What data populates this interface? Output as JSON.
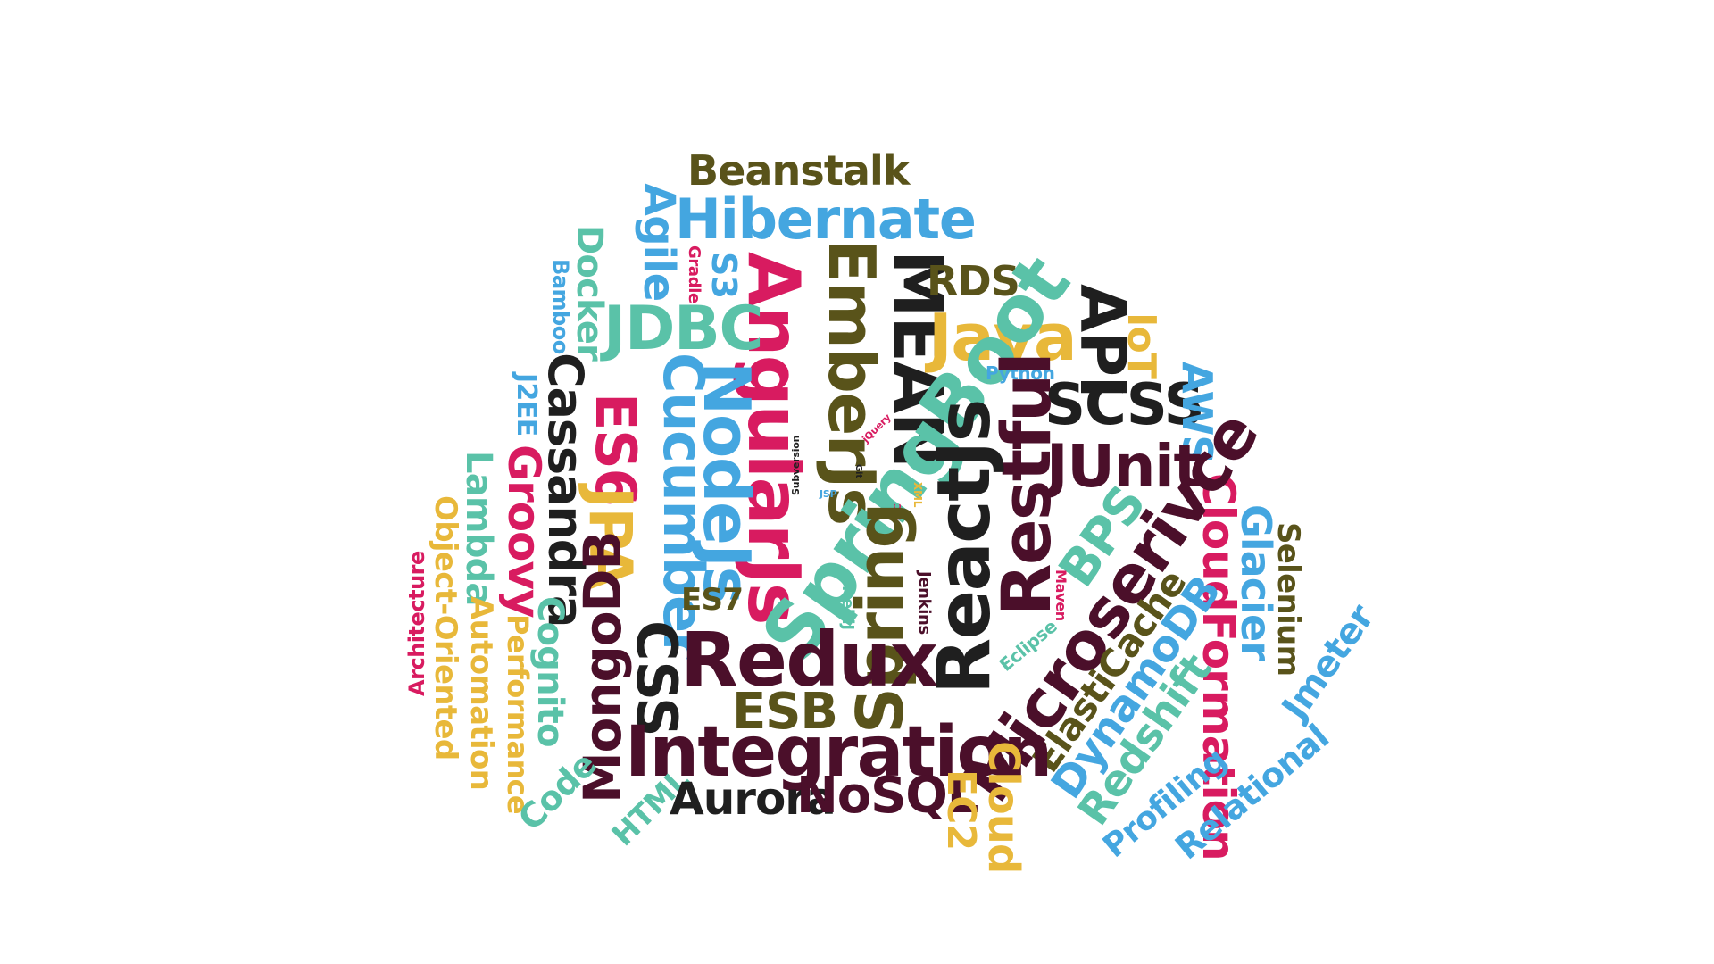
{
  "colors": {
    "dark_gold": "#59531a",
    "blue": "#44a6e0",
    "teal": "#5ac2a8",
    "pink": "#d81b60",
    "black": "#1f1f1f",
    "maroon": "#4b0f2a",
    "yellow": "#e8b83a"
  },
  "words": {
    "beanstalk": "Beanstalk",
    "hibernate": "Hibernate",
    "agile": "Agile",
    "docker": "Docker",
    "bamboo": "Bamboo",
    "gradle": "Gradle",
    "s3": "S3",
    "angularjs": "AngularJs",
    "emberjs": "EmberJs",
    "mean": "MEAN",
    "rds": "RDS",
    "java": "Java",
    "api": "API",
    "iot": "IoT",
    "jdbc": "JDBC",
    "cassandra": "Cassandra",
    "j2ee": "J2EE",
    "es6": "ES6",
    "cucumber": "Cucumber",
    "nodejs": "NodeJs",
    "springboot": "SpringBoot",
    "python": "Python",
    "scss": "SCSS",
    "aws": "AWS",
    "restful": "Restful",
    "junit": "JUnit",
    "lambda": "Lambda",
    "groovy": "Groovy",
    "jpa": "JPA",
    "object_oriented": "Object-Oriented",
    "architecture": "Architecture",
    "subversion": "Subversion",
    "jsp": "JSP",
    "git": "Git",
    "jquery": "jQuery",
    "xml": "XML",
    "smtc": "SMTC",
    "reactjs": "ReactJs",
    "bps": "BPS",
    "cloudformation": "CloudFormation",
    "glacier": "Glacier",
    "selenium": "Selenium",
    "es7": "ES7",
    "intellij": "IntelliJ",
    "jenkins": "Jenkins",
    "maven": "Maven",
    "spring": "Spring",
    "microserivce": "Microserivce",
    "automation": "Automation",
    "performance": "Performance",
    "cognito": "Cognito",
    "mongodb": "MongoDB",
    "css": "CSS",
    "redux": "Redux",
    "eclipse": "Eclipse",
    "elasticache": "ElastiCache",
    "dynamodb": "DynamoDB",
    "jmeter": "Jmeter",
    "esb": "ESB",
    "integration": "Integration",
    "redshift": "Redshift",
    "code": "Code",
    "html": "HTML",
    "aurora": "Aurora",
    "nosql": "NoSQL",
    "ec2": "EC2",
    "cloud": "Cloud",
    "profiling": "Profiling",
    "relational": "Relational"
  }
}
